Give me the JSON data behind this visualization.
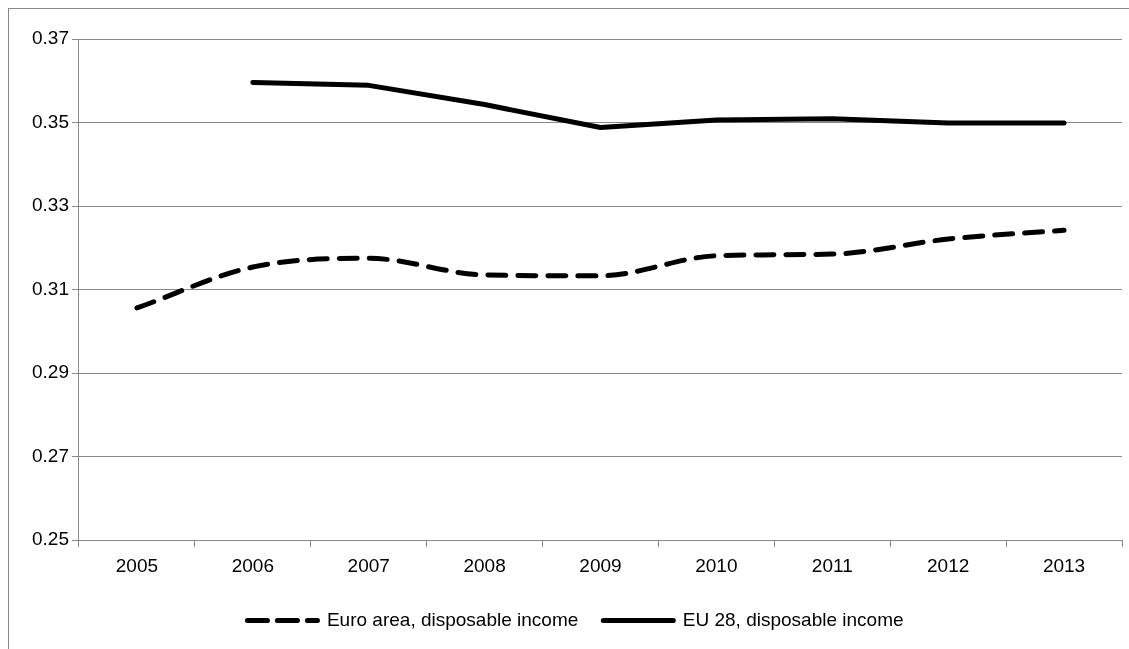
{
  "chart_data": {
    "type": "line",
    "categories": [
      "2005",
      "2006",
      "2007",
      "2008",
      "2009",
      "2010",
      "2011",
      "2012",
      "2013"
    ],
    "series": [
      {
        "name": "Euro area, disposable income",
        "color": "#000000",
        "line_style": "dashed",
        "values": [
          0.3056,
          0.3154,
          0.3175,
          0.3135,
          0.3133,
          0.3181,
          0.3185,
          0.3221,
          0.3242
        ]
      },
      {
        "name": "EU 28, disposable income",
        "color": "#000000",
        "line_style": "solid",
        "values": [
          null,
          0.3596,
          0.3589,
          0.3543,
          0.3488,
          0.3506,
          0.3509,
          0.3499,
          0.3499
        ]
      }
    ],
    "ylim": [
      0.25,
      0.37
    ],
    "yticks": [
      0.25,
      0.27,
      0.29,
      0.31,
      0.33,
      0.35,
      0.37
    ],
    "grid": "y",
    "legend": "bottom",
    "marker": "none"
  }
}
